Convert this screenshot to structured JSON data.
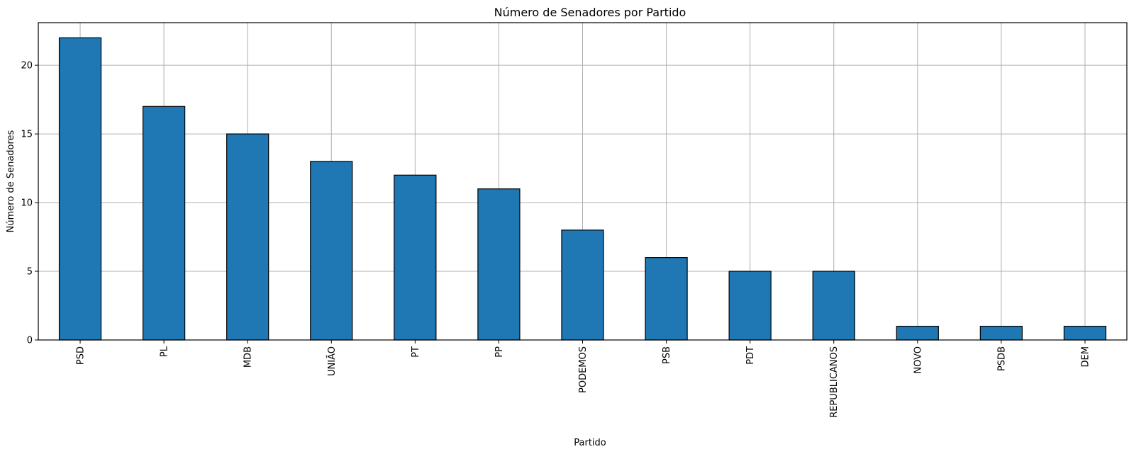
{
  "chart_data": {
    "type": "bar",
    "title": "Número de Senadores por Partido",
    "xlabel": "Partido",
    "ylabel": "Número de Senadores",
    "categories": [
      "PSD",
      "PL",
      "MDB",
      "UNIÃO",
      "PT",
      "PP",
      "PODEMOS",
      "PSB",
      "PDT",
      "REPUBLICANOS",
      "NOVO",
      "PSDB",
      "DEM"
    ],
    "values": [
      22,
      17,
      15,
      13,
      12,
      11,
      8,
      6,
      5,
      5,
      1,
      1,
      1
    ],
    "ylim": [
      0,
      23.1
    ],
    "yticks": [
      0,
      5,
      10,
      15,
      20
    ],
    "grid": true,
    "bar_color": "#1f77b4",
    "edge_color": "#000000",
    "xtick_rotation": 90
  }
}
